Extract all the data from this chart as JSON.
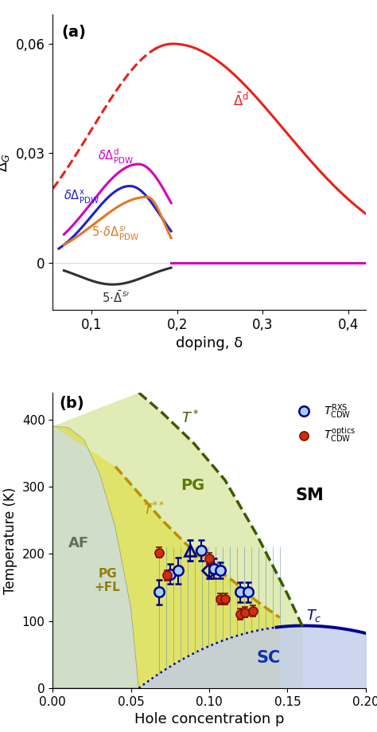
{
  "panel_a": {
    "xlim": [
      0.055,
      0.42
    ],
    "ylim": [
      -0.013,
      0.068
    ],
    "yticks": [
      0.0,
      0.03,
      0.06
    ],
    "xticks": [
      0.1,
      0.2,
      0.3,
      0.4
    ],
    "xlabel": "doping, δ",
    "ylabel": "Δ_G",
    "label": "(a)"
  },
  "panel_b": {
    "xlim": [
      0.0,
      0.2
    ],
    "ylim": [
      0,
      440
    ],
    "yticks": [
      0,
      100,
      200,
      300,
      400
    ],
    "xticks": [
      0.0,
      0.05,
      0.1,
      0.15,
      0.2
    ],
    "xlabel": "Hole concentration p",
    "ylabel": "Temperature (K)",
    "label": "(b)"
  },
  "colors": {
    "red": "#e8201a",
    "magenta": "#d000c0",
    "blue": "#2020cc",
    "orange": "#e07820",
    "black": "#303030",
    "dark_green": "#3a5a00",
    "dark_yellow": "#b89000",
    "navy": "#000090",
    "sc_fill": "#c0ccec",
    "af_fill": "#c8d8c0",
    "pg_fill": "#c8dc78",
    "pgfl_fill": "#e0e040",
    "sm_fill": "#ffffff"
  }
}
